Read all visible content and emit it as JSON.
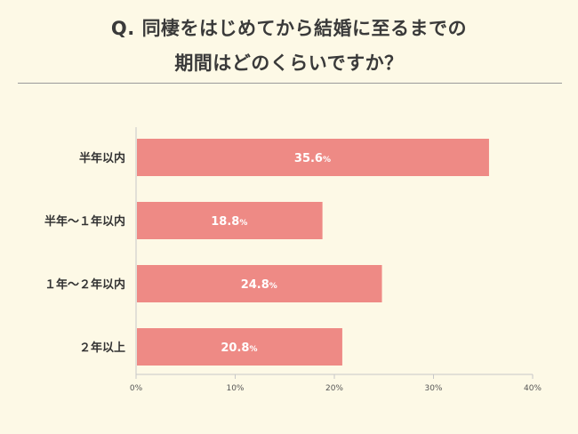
{
  "title_lines": [
    "Q. 同棲をはじめてから結婚に至るまでの",
    "期間はどのくらいですか？"
  ],
  "colors": {
    "bar": "#ee8a85",
    "background": "#fdf9e6",
    "axis": "#c8c8c8",
    "value_text": "#ffffff",
    "label_text": "#333333"
  },
  "chart_data": {
    "type": "bar",
    "orientation": "horizontal",
    "title": "Q. 同棲をはじめてから結婚に至るまでの期間はどのくらいですか？",
    "categories": [
      "半年以内",
      "半年～１年以内",
      "１年～２年以内",
      "２年以上"
    ],
    "values": [
      35.6,
      18.8,
      24.8,
      20.8
    ],
    "value_suffix": "%",
    "xlim": [
      0,
      40
    ],
    "x_ticks": [
      "0%",
      "10%",
      "20%",
      "30%",
      "40%"
    ],
    "xlabel": "",
    "ylabel": "",
    "grid": false
  }
}
